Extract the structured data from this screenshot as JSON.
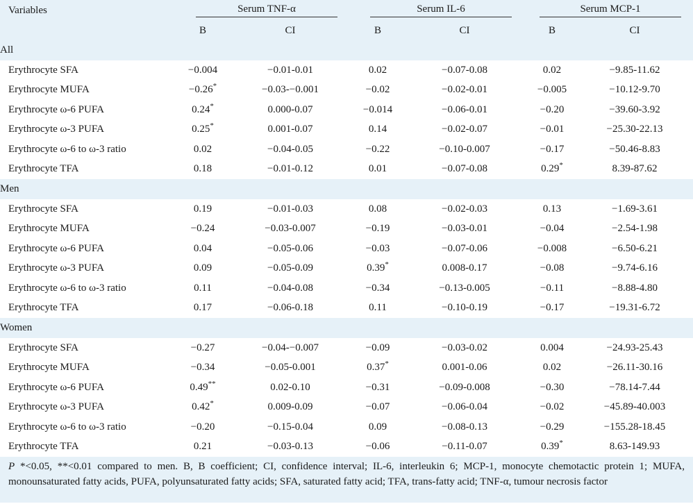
{
  "header": {
    "variables": "Variables",
    "groups": [
      "Serum TNF-α",
      "Serum IL-6",
      "Serum MCP-1"
    ],
    "sub": [
      "B",
      "CI",
      "B",
      "CI",
      "B",
      "CI"
    ]
  },
  "sections": [
    {
      "label": "All",
      "rows": [
        {
          "name": "Erythrocyte SFA",
          "v": [
            "−0.004",
            "−0.01-0.01",
            "0.02",
            "−0.07-0.08",
            "0.02",
            "−9.85-11.62"
          ],
          "m": [
            "",
            "",
            "",
            "",
            "",
            ""
          ]
        },
        {
          "name": "Erythrocyte MUFA",
          "v": [
            "−0.26",
            "−0.03-−0.001",
            "−0.02",
            "−0.02-0.01",
            "−0.005",
            "−10.12-9.70"
          ],
          "m": [
            "*",
            "",
            "",
            "",
            "",
            ""
          ]
        },
        {
          "name": "Erythrocyte ω-6 PUFA",
          "v": [
            "0.24",
            "0.000-0.07",
            "−0.014",
            "−0.06-0.01",
            "−0.20",
            "−39.60-3.92"
          ],
          "m": [
            "*",
            "",
            "",
            "",
            "",
            ""
          ]
        },
        {
          "name": "Erythrocyte ω-3 PUFA",
          "v": [
            "0.25",
            "0.001-0.07",
            "0.14",
            "−0.02-0.07",
            "−0.01",
            "−25.30-22.13"
          ],
          "m": [
            "*",
            "",
            "",
            "",
            "",
            ""
          ]
        },
        {
          "name": "Erythrocyte ω-6 to ω-3 ratio",
          "v": [
            "0.02",
            "−0.04-0.05",
            "−0.22",
            "−0.10-0.007",
            "−0.17",
            "−50.46-8.83"
          ],
          "m": [
            "",
            "",
            "",
            "",
            "",
            ""
          ]
        },
        {
          "name": "Erythrocyte TFA",
          "v": [
            "0.18",
            "−0.01-0.12",
            "0.01",
            "−0.07-0.08",
            "0.29",
            "8.39-87.62"
          ],
          "m": [
            "",
            "",
            "",
            "",
            "*",
            ""
          ]
        }
      ]
    },
    {
      "label": "Men",
      "rows": [
        {
          "name": "Erythrocyte SFA",
          "v": [
            "0.19",
            "−0.01-0.03",
            "0.08",
            "−0.02-0.03",
            "0.13",
            "−1.69-3.61"
          ],
          "m": [
            "",
            "",
            "",
            "",
            "",
            ""
          ]
        },
        {
          "name": "Erythrocyte MUFA",
          "v": [
            "−0.24",
            "−0.03-0.007",
            "−0.19",
            "−0.03-0.01",
            "−0.04",
            "−2.54-1.98"
          ],
          "m": [
            "",
            "",
            "",
            "",
            "",
            ""
          ]
        },
        {
          "name": "Erythrocyte ω-6 PUFA",
          "v": [
            "0.04",
            "−0.05-0.06",
            "−0.03",
            "−0.07-0.06",
            "−0.008",
            "−6.50-6.21"
          ],
          "m": [
            "",
            "",
            "",
            "",
            "",
            ""
          ]
        },
        {
          "name": "Erythrocyte ω-3 PUFA",
          "v": [
            "0.09",
            "−0.05-0.09",
            "0.39",
            "0.008-0.17",
            "−0.08",
            "−9.74-6.16"
          ],
          "m": [
            "",
            "",
            "*",
            "",
            "",
            ""
          ]
        },
        {
          "name": "Erythrocyte ω-6 to ω-3 ratio",
          "v": [
            "0.11",
            "−0.04-0.08",
            "−0.34",
            "−0.13-0.005",
            "−0.11",
            "−8.88-4.80"
          ],
          "m": [
            "",
            "",
            "",
            "",
            "",
            ""
          ]
        },
        {
          "name": "Erythrocyte TFA",
          "v": [
            "0.17",
            "−0.06-0.18",
            "0.11",
            "−0.10-0.19",
            "−0.17",
            "−19.31-6.72"
          ],
          "m": [
            "",
            "",
            "",
            "",
            "",
            ""
          ]
        }
      ]
    },
    {
      "label": "Women",
      "rows": [
        {
          "name": "Erythrocyte SFA",
          "v": [
            "−0.27",
            "−0.04-−0.007",
            "−0.09",
            "−0.03-0.02",
            "0.004",
            "−24.93-25.43"
          ],
          "m": [
            "",
            "",
            "",
            "",
            "",
            ""
          ]
        },
        {
          "name": "Erythrocyte MUFA",
          "v": [
            "−0.34",
            "−0.05-0.001",
            "0.37",
            "0.001-0.06",
            "0.02",
            "−26.11-30.16"
          ],
          "m": [
            "",
            "",
            "*",
            "",
            "",
            ""
          ]
        },
        {
          "name": "Erythrocyte ω-6 PUFA",
          "v": [
            "0.49",
            "0.02-0.10",
            "−0.31",
            "−0.09-0.008",
            "−0.30",
            "−78.14-7.44"
          ],
          "m": [
            "**",
            "",
            "",
            "",
            "",
            ""
          ]
        },
        {
          "name": "Erythrocyte ω-3 PUFA",
          "v": [
            "0.42",
            "0.009-0.09",
            "−0.07",
            "−0.06-0.04",
            "−0.02",
            "−45.89-40.003"
          ],
          "m": [
            "*",
            "",
            "",
            "",
            "",
            ""
          ]
        },
        {
          "name": "Erythrocyte ω-6 to ω-3 ratio",
          "v": [
            "−0.20",
            "−0.15-0.04",
            "0.09",
            "−0.08-0.13",
            "−0.29",
            "−155.28-18.45"
          ],
          "m": [
            "",
            "",
            "",
            "",
            "",
            ""
          ]
        },
        {
          "name": "Erythrocyte TFA",
          "v": [
            "0.21",
            "−0.03-0.13",
            "−0.06",
            "−0.11-0.07",
            "0.39",
            "8.63-149.93"
          ],
          "m": [
            "",
            "",
            "",
            "",
            "*",
            ""
          ]
        }
      ]
    }
  ],
  "footnote": {
    "p": "P",
    "text": " *<0.05, **<0.01 compared to men. B, B coefficient; CI, confidence interval; IL-6, interleukin 6; MCP-1, monocyte chemotactic protein 1; MUFA, monounsaturated fatty acids, PUFA, polyunsaturated fatty acids; SFA, saturated fatty acid; TFA, trans-fatty acid; TNF-α, tumour necrosis factor"
  }
}
